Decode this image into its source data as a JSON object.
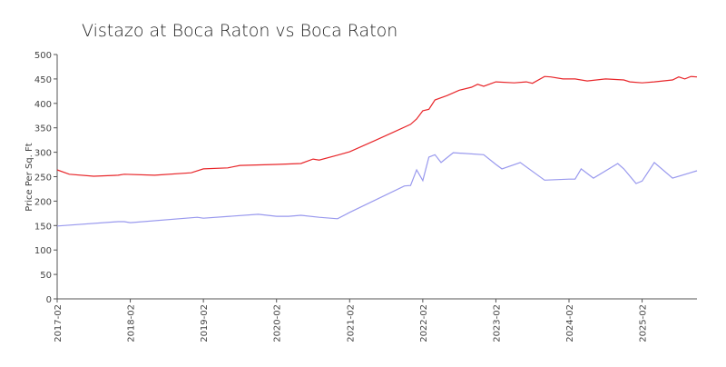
{
  "chart_data": {
    "type": "line",
    "title": "Vistazo at Boca Raton vs Boca Raton",
    "y_label": "Price Per Sq. Ft",
    "xlim": [
      "2017-02",
      "2025-11"
    ],
    "xticks": [
      "2017-02",
      "2018-02",
      "2019-02",
      "2020-02",
      "2021-02",
      "2022-02",
      "2023-02",
      "2024-02",
      "2025-02"
    ],
    "ylim": [
      0,
      500
    ],
    "yticks": [
      0,
      50,
      100,
      150,
      200,
      250,
      300,
      350,
      400,
      450,
      500
    ],
    "series": [
      {
        "color": "#e8262a",
        "x": [
          "2017-02",
          "2017-04",
          "2017-08",
          "2017-12",
          "2018-01",
          "2018-06",
          "2018-12",
          "2019-02",
          "2019-06",
          "2019-08",
          "2020-02",
          "2020-06",
          "2020-08",
          "2020-09",
          "2020-12",
          "2021-02",
          "2021-06",
          "2021-09",
          "2021-12",
          "2022-01",
          "2022-02",
          "2022-03",
          "2022-04",
          "2022-06",
          "2022-08",
          "2022-10",
          "2022-11",
          "2022-12",
          "2023-02",
          "2023-05",
          "2023-07",
          "2023-08",
          "2023-10",
          "2023-11",
          "2024-01",
          "2024-03",
          "2024-05",
          "2024-08",
          "2024-11",
          "2024-12",
          "2025-02",
          "2025-04",
          "2025-07",
          "2025-08",
          "2025-09",
          "2025-10",
          "2025-11"
        ],
        "values": [
          264,
          255,
          251,
          253,
          255,
          253,
          258,
          266,
          268,
          273,
          275,
          277,
          286,
          284,
          294,
          301,
          323,
          340,
          357,
          368,
          385,
          388,
          407,
          416,
          427,
          433,
          439,
          435,
          444,
          442,
          444,
          441,
          455,
          454,
          450,
          450,
          446,
          450,
          448,
          444,
          442,
          444,
          448,
          454,
          450,
          455,
          454
        ]
      },
      {
        "color": "#9999ee",
        "x": [
          "2017-02",
          "2017-12",
          "2018-01",
          "2018-02",
          "2019-01",
          "2019-02",
          "2019-11",
          "2020-02",
          "2020-04",
          "2020-06",
          "2020-09",
          "2020-12",
          "2021-02",
          "2021-11",
          "2021-12",
          "2022-01",
          "2022-02",
          "2022-03",
          "2022-04",
          "2022-05",
          "2022-07",
          "2022-12",
          "2023-02",
          "2023-03",
          "2023-06",
          "2023-10",
          "2024-02",
          "2024-03",
          "2024-04",
          "2024-06",
          "2024-10",
          "2024-11",
          "2025-01",
          "2025-02",
          "2025-04",
          "2025-07",
          "2025-11"
        ],
        "values": [
          149,
          158,
          158,
          156,
          167,
          165,
          173,
          169,
          169,
          171,
          167,
          164,
          177,
          231,
          232,
          264,
          242,
          290,
          295,
          279,
          299,
          295,
          275,
          266,
          279,
          243,
          245,
          245,
          266,
          247,
          277,
          266,
          236,
          241,
          279,
          247,
          262
        ]
      }
    ]
  }
}
